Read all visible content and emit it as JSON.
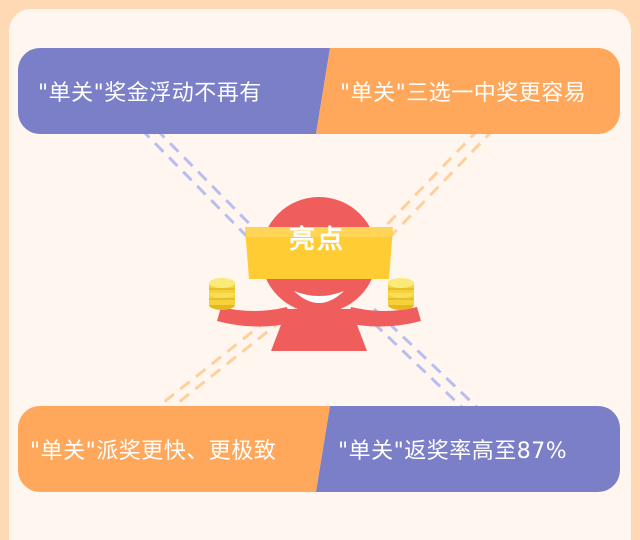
{
  "colors": {
    "purple": "#7a7fc7",
    "orange": "#ffa85b",
    "mascot_red": "#ef5d5d",
    "headband_yellow": "#ffcc33",
    "coin_gold": "#f5d23b",
    "frame": "#ffd9b3",
    "background": "#fff7ef"
  },
  "icons": [
    "mascot-icon",
    "coin-stack-icon"
  ],
  "top_row": {
    "left_text": "\"单关\"奖金浮动不再有",
    "right_text": "\"单关\"三选一中奖更容易"
  },
  "center": {
    "badge": "亮点"
  },
  "bottom_row": {
    "left_text": "\"单关\"派奖更快、更极致",
    "right_text": "\"单关\"返奖率高至87%"
  }
}
